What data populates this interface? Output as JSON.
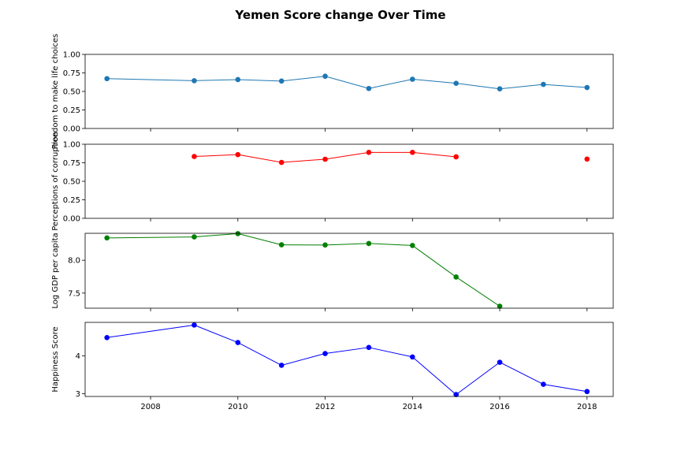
{
  "chart_data": {
    "type": "line",
    "title": "Yemen Score change Over Time",
    "x_ticks": [
      2008,
      2010,
      2012,
      2014,
      2016,
      2018
    ],
    "xlim": [
      2006.5,
      2018.6
    ],
    "panels": [
      {
        "name": "freedom",
        "ylabel": "Freedom to make life choices",
        "color": "#1f77b4",
        "ylim": [
          0,
          1
        ],
        "y_ticks": [
          "0.00",
          "0.25",
          "0.50",
          "0.75",
          "1.00"
        ],
        "points": [
          [
            2007,
            0.673
          ],
          [
            2009,
            0.645
          ],
          [
            2010,
            0.66
          ],
          [
            2011,
            0.64
          ],
          [
            2012,
            0.705
          ],
          [
            2013,
            0.54
          ],
          [
            2014,
            0.665
          ],
          [
            2015,
            0.61
          ],
          [
            2016,
            0.535
          ],
          [
            2017,
            0.595
          ],
          [
            2018,
            0.553
          ]
        ]
      },
      {
        "name": "corruption",
        "ylabel": "Perceptions of corruption",
        "color": "#ff0000",
        "ylim": [
          0,
          1
        ],
        "y_ticks": [
          "0.00",
          "0.25",
          "0.50",
          "0.75",
          "1.00"
        ],
        "points": [
          [
            2009,
            0.835
          ],
          [
            2010,
            0.86
          ],
          [
            2011,
            0.755
          ],
          [
            2012,
            0.798
          ],
          [
            2013,
            0.89
          ],
          [
            2014,
            0.89
          ],
          [
            2015,
            0.83
          ],
          [
            2018,
            0.8
          ]
        ]
      },
      {
        "name": "gdp",
        "ylabel": "Log GDP per capita",
        "color": "#008000",
        "ylim": [
          7.27,
          8.41
        ],
        "y_ticks": [
          "7.5",
          "8.0"
        ],
        "points": [
          [
            2007,
            8.34
          ],
          [
            2009,
            8.355
          ],
          [
            2010,
            8.405
          ],
          [
            2011,
            8.235
          ],
          [
            2012,
            8.232
          ],
          [
            2013,
            8.255
          ],
          [
            2014,
            8.225
          ],
          [
            2015,
            7.745
          ],
          [
            2016,
            7.3
          ]
        ]
      },
      {
        "name": "happiness",
        "ylabel": "Happiness Score",
        "color": "#0000ff",
        "ylim": [
          2.93,
          4.88
        ],
        "y_ticks": [
          "3",
          "4"
        ],
        "points": [
          [
            2007,
            4.48
          ],
          [
            2009,
            4.81
          ],
          [
            2010,
            4.35
          ],
          [
            2011,
            3.75
          ],
          [
            2012,
            4.06
          ],
          [
            2013,
            4.22
          ],
          [
            2014,
            3.97
          ],
          [
            2015,
            2.98
          ],
          [
            2016,
            3.83
          ],
          [
            2017,
            3.25
          ],
          [
            2018,
            3.06
          ]
        ]
      }
    ]
  }
}
